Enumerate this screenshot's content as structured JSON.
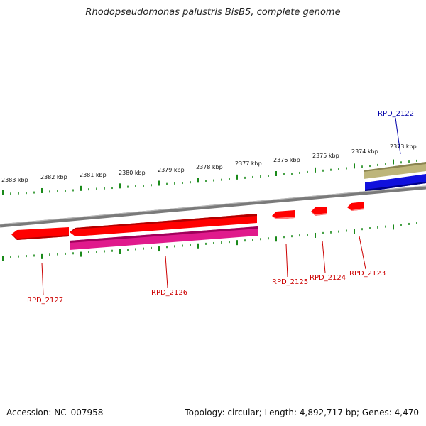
{
  "title": "Rhodopseudomonas palustris BisB5, complete genome",
  "footer": {
    "accession": "Accession: NC_007958",
    "summary": "Topology: circular; Length: 4,892,717 bp; Genes: 4,470"
  },
  "scale_labels": [
    "2383 kbp",
    "2382 kbp",
    "2381 kbp",
    "2380 kbp",
    "2379 kbp",
    "2378 kbp",
    "2377 kbp",
    "2376 kbp",
    "2375 kbp",
    "2374 kbp",
    "2373 kbp"
  ],
  "genes": [
    {
      "id": "RPD_2122",
      "strand": "forward",
      "color": "#1010dd"
    },
    {
      "id": "RPD_2123",
      "strand": "reverse",
      "color": "#ff0000"
    },
    {
      "id": "RPD_2124",
      "strand": "reverse",
      "color": "#ff0000"
    },
    {
      "id": "RPD_2125",
      "strand": "reverse",
      "color": "#ff0000"
    },
    {
      "id": "RPD_2126",
      "strand": "reverse",
      "color": "#ff0000"
    },
    {
      "id": "RPD_2127",
      "strand": "reverse",
      "color": "#ff0000"
    }
  ],
  "feature_colors": {
    "backbone": "#888888",
    "forward_feature": "#bdb57a",
    "forward_cds": "#1010dd",
    "reverse_cds": "#ff0000",
    "reverse_feature": "#e01a8c",
    "ticks": "#1a8a1a",
    "label_reverse": "#cc0000",
    "label_forward": "#0000aa"
  }
}
